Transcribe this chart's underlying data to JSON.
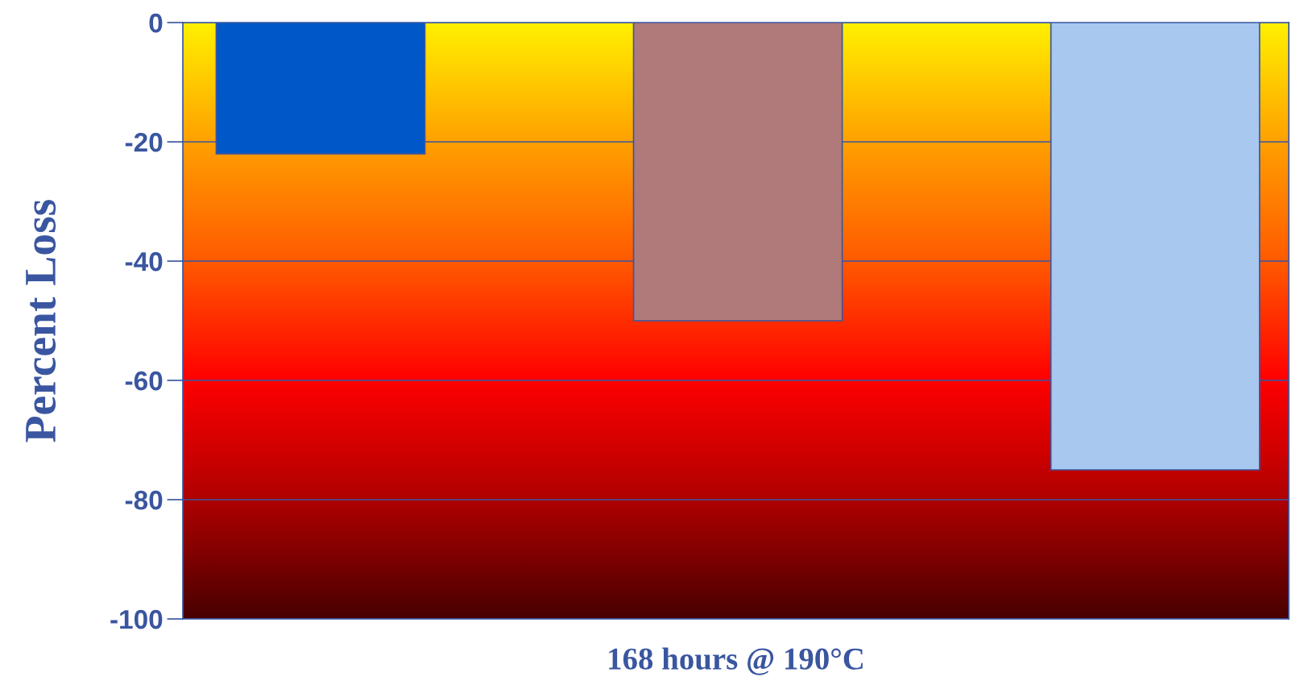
{
  "chart_data": {
    "type": "bar",
    "xlabel": "168 hours @ 190°C",
    "ylabel": "Percent Loss",
    "categories": [
      null,
      null,
      null
    ],
    "values": [
      -22,
      -50,
      -75
    ],
    "colors": [
      "#0058c8",
      "#b07a7a",
      "#a8c8f0"
    ],
    "ylim": [
      -100,
      0
    ],
    "yticks": [
      -100,
      -80,
      -60,
      -40,
      -20,
      0
    ],
    "grid": "y",
    "tick_labels": "y"
  }
}
